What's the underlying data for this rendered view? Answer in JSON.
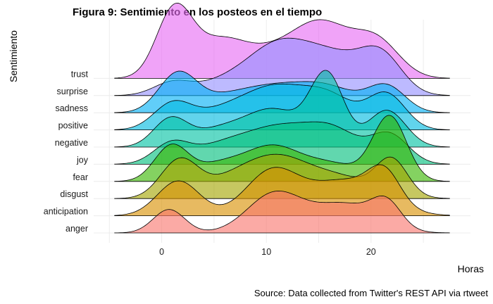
{
  "chart_data": {
    "type": "ridgeline",
    "title": "Figura 9: Sentimiento en los posteos en el tiempo",
    "xlabel": "Horas",
    "ylabel": "Sentimiento",
    "caption": "Source: Data collected from Twitter's REST API via rtweet",
    "xlim": [
      -6.5,
      29.5
    ],
    "xticks": [
      0,
      10,
      20
    ],
    "density_x_range": [
      -4.5,
      27.5
    ],
    "grid": true,
    "categories": [
      "anger",
      "anticipation",
      "disgust",
      "fear",
      "joy",
      "negative",
      "positive",
      "sadness",
      "surprise",
      "trust"
    ],
    "series": [
      {
        "name": "anger",
        "color": "#F8766D",
        "components": [
          {
            "mu": 0.7,
            "sigma": 1.5,
            "weight": 0.37
          },
          {
            "mu": 10.8,
            "sigma": 2.6,
            "weight": 0.62
          },
          {
            "mu": 17.5,
            "sigma": 3.0,
            "weight": 0.45
          },
          {
            "mu": 21.5,
            "sigma": 1.4,
            "weight": 0.38
          }
        ]
      },
      {
        "name": "anticipation",
        "color": "#D89000",
        "components": [
          {
            "mu": 1.6,
            "sigma": 2.0,
            "weight": 0.55
          },
          {
            "mu": 10.5,
            "sigma": 2.5,
            "weight": 0.68
          },
          {
            "mu": 17.5,
            "sigma": 3.5,
            "weight": 0.55
          },
          {
            "mu": 21.3,
            "sigma": 1.5,
            "weight": 0.48
          }
        ]
      },
      {
        "name": "disgust",
        "color": "#A3A500",
        "components": [
          {
            "mu": 1.7,
            "sigma": 1.8,
            "weight": 0.6
          },
          {
            "mu": 6.5,
            "sigma": 2.5,
            "weight": 0.25
          },
          {
            "mu": 10.8,
            "sigma": 2.8,
            "weight": 0.55
          },
          {
            "mu": 16.5,
            "sigma": 3.5,
            "weight": 0.35
          },
          {
            "mu": 22.0,
            "sigma": 1.5,
            "weight": 0.55
          }
        ]
      },
      {
        "name": "fear",
        "color": "#39B600",
        "components": [
          {
            "mu": 0.9,
            "sigma": 1.6,
            "weight": 0.54
          },
          {
            "mu": 5.5,
            "sigma": 2.5,
            "weight": 0.26
          },
          {
            "mu": 10.5,
            "sigma": 2.5,
            "weight": 0.49
          },
          {
            "mu": 16.0,
            "sigma": 3.0,
            "weight": 0.28
          },
          {
            "mu": 21.8,
            "sigma": 1.6,
            "weight": 1.0
          }
        ]
      },
      {
        "name": "joy",
        "color": "#00BF7D",
        "components": [
          {
            "mu": 0.9,
            "sigma": 1.7,
            "weight": 0.3
          },
          {
            "mu": 6.0,
            "sigma": 3.0,
            "weight": 0.3
          },
          {
            "mu": 11.5,
            "sigma": 3.0,
            "weight": 0.52
          },
          {
            "mu": 16.5,
            "sigma": 2.5,
            "weight": 0.48
          },
          {
            "mu": 21.8,
            "sigma": 1.8,
            "weight": 0.45
          }
        ]
      },
      {
        "name": "negative",
        "color": "#00C1A3",
        "components": [
          {
            "mu": 0.8,
            "sigma": 1.6,
            "weight": 0.41
          },
          {
            "mu": 6.0,
            "sigma": 3.0,
            "weight": 0.3
          },
          {
            "mu": 11.0,
            "sigma": 2.5,
            "weight": 0.52
          },
          {
            "mu": 15.8,
            "sigma": 1.6,
            "weight": 1.12
          },
          {
            "mu": 21.5,
            "sigma": 1.8,
            "weight": 0.58
          }
        ]
      },
      {
        "name": "positive",
        "color": "#00BAE0",
        "components": [
          {
            "mu": 1.0,
            "sigma": 1.8,
            "weight": 0.38
          },
          {
            "mu": 6.0,
            "sigma": 3.0,
            "weight": 0.3
          },
          {
            "mu": 11.0,
            "sigma": 2.8,
            "weight": 0.58
          },
          {
            "mu": 16.0,
            "sigma": 2.5,
            "weight": 0.5
          },
          {
            "mu": 21.5,
            "sigma": 1.8,
            "weight": 0.55
          }
        ]
      },
      {
        "name": "sadness",
        "color": "#00B0F6",
        "components": [
          {
            "mu": 1.5,
            "sigma": 1.8,
            "weight": 0.58
          },
          {
            "mu": 6.0,
            "sigma": 3.0,
            "weight": 0.22
          },
          {
            "mu": 11.0,
            "sigma": 3.0,
            "weight": 0.34
          },
          {
            "mu": 16.0,
            "sigma": 2.8,
            "weight": 0.36
          },
          {
            "mu": 21.5,
            "sigma": 1.8,
            "weight": 0.4
          }
        ]
      },
      {
        "name": "surprise",
        "color": "#9590FF",
        "components": [
          {
            "mu": 1.0,
            "sigma": 1.8,
            "weight": 0.2
          },
          {
            "mu": 5.5,
            "sigma": 2.5,
            "weight": 0.16
          },
          {
            "mu": 11.0,
            "sigma": 3.0,
            "weight": 0.76
          },
          {
            "mu": 16.5,
            "sigma": 3.0,
            "weight": 0.56
          },
          {
            "mu": 21.0,
            "sigma": 2.0,
            "weight": 0.56
          }
        ]
      },
      {
        "name": "trust",
        "color": "#E76BF3",
        "components": [
          {
            "mu": 1.2,
            "sigma": 1.7,
            "weight": 1.05
          },
          {
            "mu": 5.5,
            "sigma": 2.5,
            "weight": 0.55
          },
          {
            "mu": 11.0,
            "sigma": 3.0,
            "weight": 0.4
          },
          {
            "mu": 15.5,
            "sigma": 2.6,
            "weight": 0.75
          },
          {
            "mu": 20.5,
            "sigma": 2.2,
            "weight": 0.58
          }
        ]
      }
    ]
  }
}
